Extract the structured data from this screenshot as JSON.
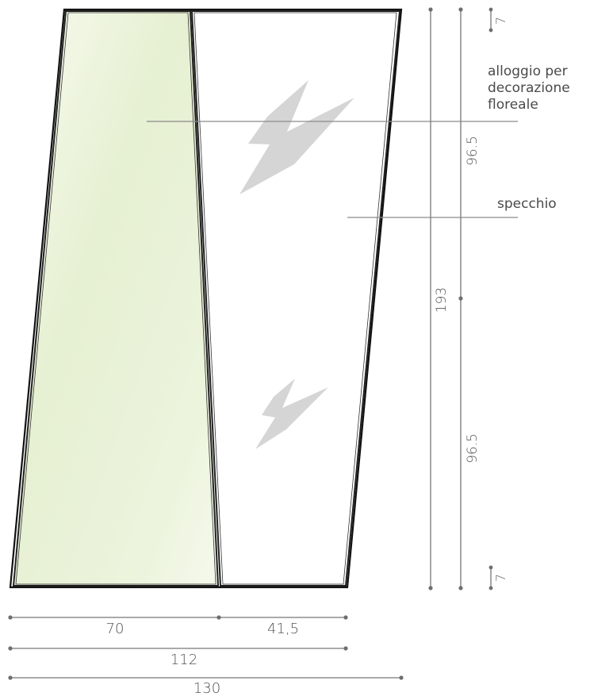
{
  "labels": {
    "housing": [
      "alloggio per",
      "decorazione",
      "floreale"
    ],
    "mirror": "specchio"
  },
  "dimensions": {
    "width_left_panel": "70",
    "width_right_panel": "41,5",
    "width_middle": "112",
    "width_total": "130",
    "height_total": "193",
    "height_upper": "96.5",
    "height_lower": "96.5",
    "offset_top": "7",
    "offset_bottom": "7"
  },
  "colors": {
    "frame": "#222222",
    "left_panel_light": "#f7fbee",
    "left_panel_tint": "#e4efcc",
    "logo_mark": "#d5d5d5",
    "dimension_line": "#777777"
  },
  "icons": {
    "logo_mark": "stylized-z-logo"
  }
}
